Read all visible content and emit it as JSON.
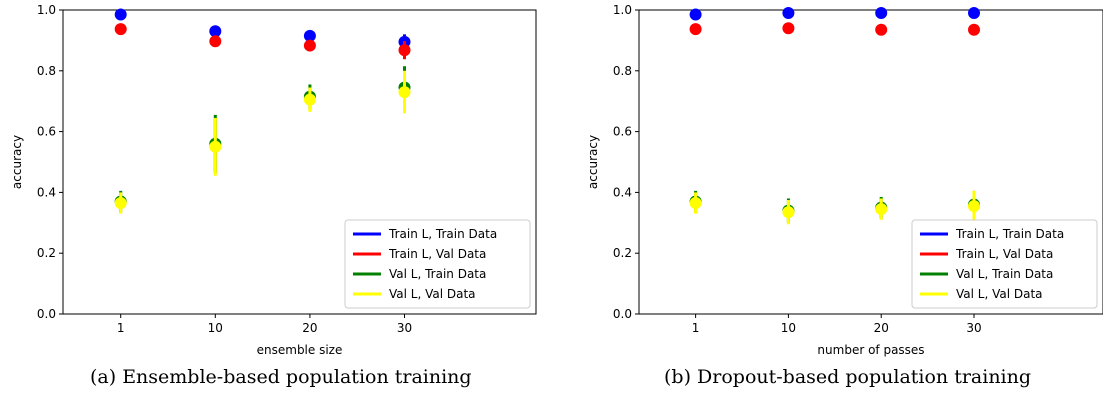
{
  "captions": {
    "a": "(a)  Ensemble-based population training",
    "b": "(b)  Dropout-based population training"
  },
  "colors": {
    "train_l_train_data": "#0000ff",
    "train_l_val_data": "#ff0000",
    "val_l_train_data": "#008000",
    "val_l_val_data": "#ffff00"
  },
  "chart_data": [
    {
      "type": "scatter",
      "xlabel": "ensemble size",
      "ylabel": "accuracy",
      "categories": [
        "1",
        "10",
        "20",
        "30"
      ],
      "ylim": [
        0.0,
        1.0
      ],
      "yticks": [
        "0.0",
        "0.2",
        "0.4",
        "0.6",
        "0.8",
        "1.0"
      ],
      "grid": false,
      "legend_position": "lower-right",
      "series": [
        {
          "name": "Train L, Train Data",
          "color": "#0000ff",
          "values": [
            0.985,
            0.93,
            0.915,
            0.895
          ],
          "errors": [
            0.005,
            0.008,
            0.01,
            0.025
          ]
        },
        {
          "name": "Train L, Val Data",
          "color": "#ff0000",
          "values": [
            0.937,
            0.897,
            0.883,
            0.868
          ],
          "errors": [
            0.005,
            0.01,
            0.012,
            0.03
          ]
        },
        {
          "name": "Val L, Train Data",
          "color": "#008000",
          "values": [
            0.37,
            0.56,
            0.715,
            0.745
          ],
          "errors": [
            0.035,
            0.095,
            0.04,
            0.07
          ]
        },
        {
          "name": "Val L, Val Data",
          "color": "#ffff00",
          "values": [
            0.365,
            0.55,
            0.705,
            0.73
          ],
          "errors": [
            0.035,
            0.095,
            0.04,
            0.07
          ]
        }
      ]
    },
    {
      "type": "scatter",
      "xlabel": "number of passes",
      "ylabel": "accuracy",
      "categories": [
        "1",
        "10",
        "20",
        "30"
      ],
      "ylim": [
        0.0,
        1.0
      ],
      "yticks": [
        "0.0",
        "0.2",
        "0.4",
        "0.6",
        "0.8",
        "1.0"
      ],
      "grid": false,
      "legend_position": "lower-right",
      "series": [
        {
          "name": "Train L, Train Data",
          "color": "#0000ff",
          "values": [
            0.985,
            0.99,
            0.99,
            0.99
          ],
          "errors": [
            0.005,
            0.005,
            0.005,
            0.005
          ]
        },
        {
          "name": "Train L, Val Data",
          "color": "#ff0000",
          "values": [
            0.937,
            0.94,
            0.935,
            0.935
          ],
          "errors": [
            0.005,
            0.005,
            0.005,
            0.005
          ]
        },
        {
          "name": "Val L, Train Data",
          "color": "#008000",
          "values": [
            0.37,
            0.34,
            0.35,
            0.36
          ],
          "errors": [
            0.035,
            0.04,
            0.035,
            0.045
          ]
        },
        {
          "name": "Val L, Val Data",
          "color": "#ffff00",
          "values": [
            0.365,
            0.335,
            0.345,
            0.355
          ],
          "errors": [
            0.035,
            0.04,
            0.035,
            0.05
          ]
        }
      ]
    }
  ]
}
